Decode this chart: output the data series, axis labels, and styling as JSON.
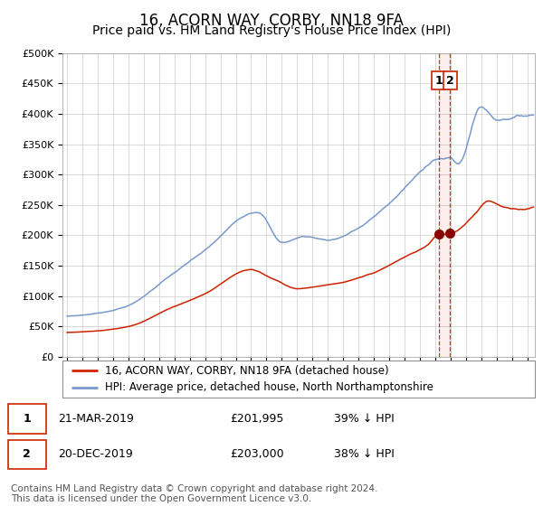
{
  "title": "16, ACORN WAY, CORBY, NN18 9FA",
  "subtitle": "Price paid vs. HM Land Registry's House Price Index (HPI)",
  "title_fontsize": 12,
  "subtitle_fontsize": 10,
  "ylabel_ticks": [
    "£0",
    "£50K",
    "£100K",
    "£150K",
    "£200K",
    "£250K",
    "£300K",
    "£350K",
    "£400K",
    "£450K",
    "£500K"
  ],
  "ytick_values": [
    0,
    50000,
    100000,
    150000,
    200000,
    250000,
    300000,
    350000,
    400000,
    450000,
    500000
  ],
  "ylim": [
    0,
    500000
  ],
  "xlim_start": 1994.7,
  "xlim_end": 2025.5,
  "hpi_color": "#7799cc",
  "price_color": "#cc2200",
  "marker_color": "#880000",
  "dashed_line_color": "#cc2200",
  "background_color": "#ffffff",
  "grid_color": "#cccccc",
  "legend_entries": [
    "16, ACORN WAY, CORBY, NN18 9FA (detached house)",
    "HPI: Average price, detached house, North Northamptonshire"
  ],
  "sale1_date": "21-MAR-2019",
  "sale1_price": "£201,995",
  "sale1_hpi": "39% ↓ HPI",
  "sale1_x": 2019.22,
  "sale1_y": 201995,
  "sale2_date": "20-DEC-2019",
  "sale2_price": "£203,000",
  "sale2_hpi": "38% ↓ HPI",
  "sale2_x": 2019.97,
  "sale2_y": 203000,
  "footnote": "Contains HM Land Registry data © Crown copyright and database right 2024.\nThis data is licensed under the Open Government Licence v3.0.",
  "footnote_fontsize": 7.5
}
